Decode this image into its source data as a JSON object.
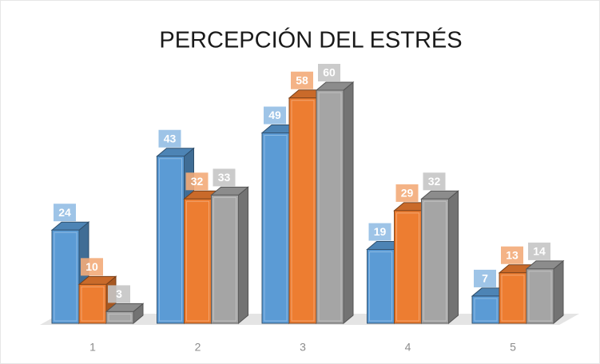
{
  "chart_data": {
    "type": "bar3d",
    "title": "PERCEPCIÓN DEL ESTRÉS",
    "categories": [
      "1",
      "2",
      "3",
      "4",
      "5"
    ],
    "series": [
      {
        "color": "#5b9bd5",
        "values": [
          24,
          43,
          49,
          19,
          7
        ]
      },
      {
        "color": "#ed7d31",
        "values": [
          10,
          32,
          58,
          29,
          13
        ]
      },
      {
        "color": "#a5a5a5",
        "values": [
          3,
          33,
          60,
          32,
          14
        ]
      }
    ]
  }
}
